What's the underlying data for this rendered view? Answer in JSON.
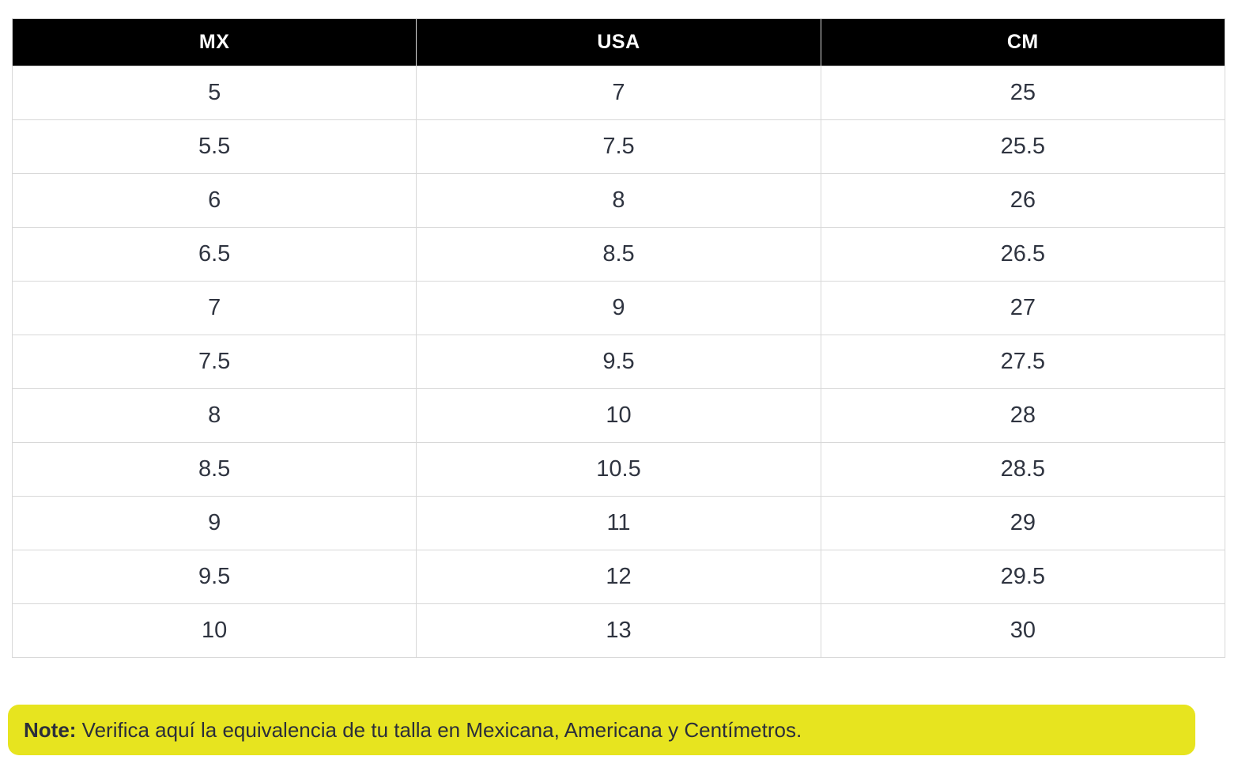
{
  "colors": {
    "header_bg": "#000000",
    "header_text": "#ffffff",
    "cell_text": "#2f3440",
    "grid_border": "#d8d8d8",
    "note_bg": "#e7e41f",
    "note_text": "#2b2e3a"
  },
  "table": {
    "columns": [
      "MX",
      "USA",
      "CM"
    ],
    "rows": [
      [
        "5",
        "7",
        "25"
      ],
      [
        "5.5",
        "7.5",
        "25.5"
      ],
      [
        "6",
        "8",
        "26"
      ],
      [
        "6.5",
        "8.5",
        "26.5"
      ],
      [
        "7",
        "9",
        "27"
      ],
      [
        "7.5",
        "9.5",
        "27.5"
      ],
      [
        "8",
        "10",
        "28"
      ],
      [
        "8.5",
        "10.5",
        "28.5"
      ],
      [
        "9",
        "11",
        "29"
      ],
      [
        "9.5",
        "12",
        "29.5"
      ],
      [
        "10",
        "13",
        "30"
      ]
    ]
  },
  "note": {
    "label": "Note:",
    "text": " Verifica aquí la equivalencia de tu talla en Mexicana, Americana y Centímetros."
  }
}
